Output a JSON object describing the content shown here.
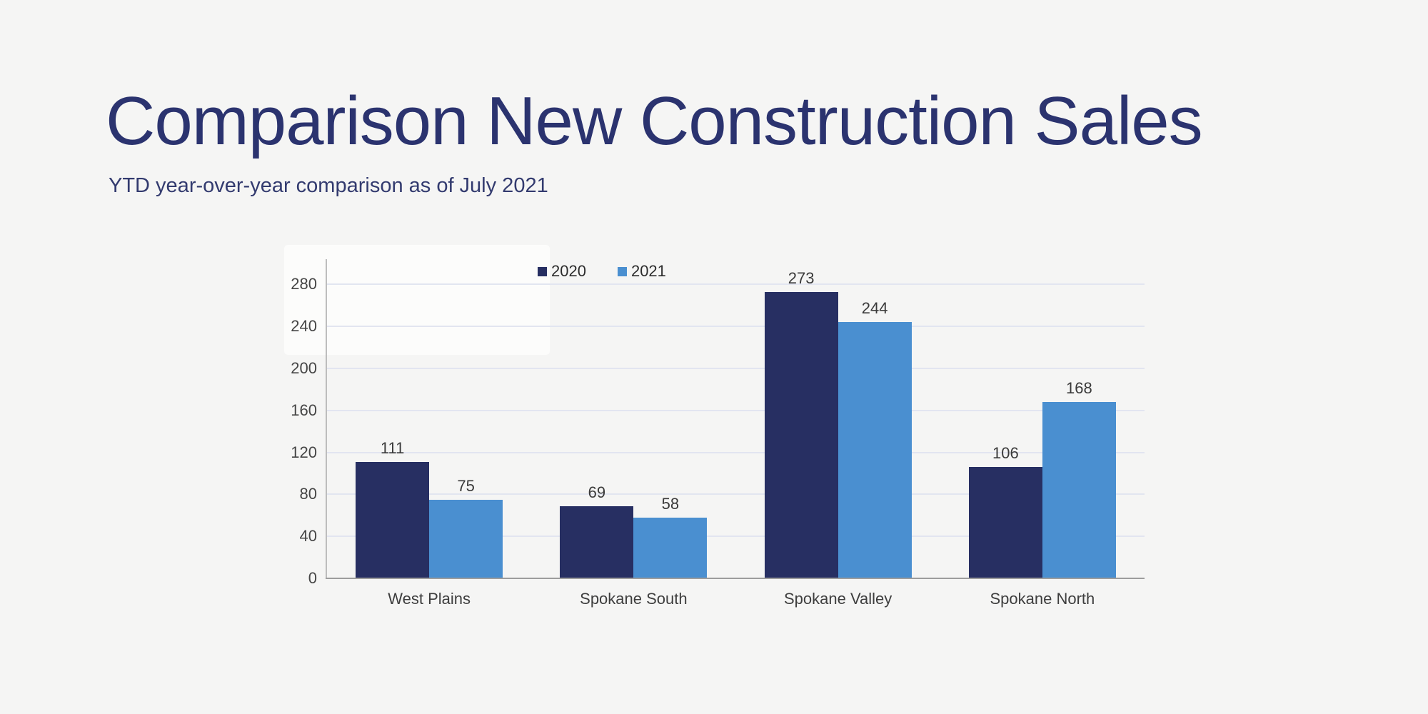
{
  "page": {
    "background": "#f5f5f4"
  },
  "header": {
    "title": "Comparison New Construction Sales",
    "subtitle": "YTD year-over-year comparison as of July 2021",
    "title_color": "#2b336f"
  },
  "chart_data": {
    "type": "bar",
    "title": "",
    "xlabel": "",
    "ylabel": "",
    "categories": [
      "West Plains",
      "Spokane South",
      "Spokane Valley",
      "Spokane North"
    ],
    "series": [
      {
        "name": "2020",
        "color": "#272f62",
        "values": [
          111,
          69,
          273,
          106
        ]
      },
      {
        "name": "2021",
        "color": "#4a8fd0",
        "values": [
          75,
          58,
          244,
          168
        ]
      }
    ],
    "ylim": [
      0,
      304
    ],
    "yticks": [
      0,
      40,
      80,
      120,
      160,
      200,
      240,
      280
    ],
    "grid": true,
    "legend_position": "top",
    "data_labels": true,
    "gridline_color": "#e2e5f0",
    "axis_line_color": "#9d9d9d"
  }
}
